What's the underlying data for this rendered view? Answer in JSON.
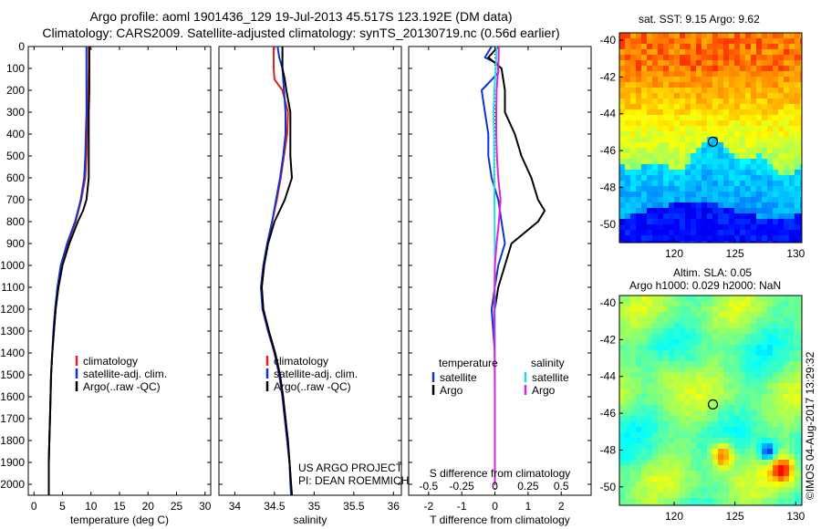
{
  "title": {
    "line1": "Argo profile: aoml 1901436_129 19-Jul-2013 45.517S 123.192E (DM data)",
    "line2": "Climatology: CARS2009. Satellite-adjusted climatology: synTS_20130719.nc (0.56d earlier)"
  },
  "colors": {
    "climatology": "#dd2222",
    "satellite": "#1133cc",
    "argo": "#000000",
    "salinity_satellite": "#22dddd",
    "salinity_argo": "#dd22dd"
  },
  "depth_ticks": [
    0,
    100,
    200,
    300,
    400,
    500,
    600,
    700,
    800,
    900,
    1000,
    1100,
    1200,
    1300,
    1400,
    1500,
    1600,
    1700,
    1800,
    1900,
    2000
  ],
  "legend": {
    "climatology": "climatology",
    "satellite": "satellite-adj. clim.",
    "argo": "Argo(..raw -QC)"
  },
  "diff_legend": {
    "temp_header": "temperature",
    "sal_header": "salinity",
    "satellite": "satellite",
    "argo": "Argo"
  },
  "credit": {
    "line1": "US ARGO PROJECT",
    "line2": "PI: DEAN ROEMMICH"
  },
  "maps": {
    "sst_title": "sat. SST: 9.15 Argo: 9.62",
    "sla_title1": "Altim. SLA: 0.05",
    "sla_title2": "Argo h1000: 0.029 h2000: NaN",
    "side_text": "©IMOS 04-Aug-2017 13:29:32",
    "lat_ticks": [
      "-40",
      "-42",
      "-44",
      "-46",
      "-48",
      "-50"
    ],
    "lon_ticks": [
      "120",
      "125",
      "130"
    ]
  },
  "chart_data": [
    {
      "type": "line",
      "xlabel": "temperature (deg C)",
      "ylim": [
        2050,
        0
      ],
      "xlim": [
        -1,
        31
      ],
      "xticks": [
        0,
        5,
        10,
        15,
        20,
        25,
        30
      ],
      "series": [
        {
          "name": "climatology",
          "depth": [
            0,
            100,
            200,
            300,
            400,
            500,
            600,
            700,
            800,
            900,
            1000,
            1100,
            1200,
            1300,
            1400,
            1500,
            1600,
            1700,
            1800,
            1900,
            2000,
            2050
          ],
          "values": [
            9.6,
            9.6,
            9.5,
            9.4,
            9.3,
            9.2,
            9.0,
            8.3,
            7.3,
            5.9,
            4.8,
            4.2,
            3.8,
            3.5,
            3.2,
            3.0,
            2.9,
            2.8,
            2.7,
            2.6,
            2.6,
            2.6
          ]
        },
        {
          "name": "satellite-adj. clim.",
          "depth": [
            0,
            100,
            200,
            300,
            400,
            500,
            600,
            700,
            800,
            900,
            1000,
            1100,
            1200,
            1300,
            1400,
            1500,
            1600,
            1700,
            1800,
            1900,
            2000,
            2050
          ],
          "values": [
            9.2,
            9.2,
            9.2,
            9.2,
            9.1,
            9.0,
            8.8,
            8.2,
            7.2,
            5.8,
            4.7,
            4.1,
            3.7,
            3.4,
            3.2,
            3.0,
            2.9,
            2.8,
            2.7,
            2.6,
            2.6,
            2.6
          ]
        },
        {
          "name": "Argo(..raw -QC)",
          "depth": [
            0,
            100,
            200,
            300,
            400,
            500,
            600,
            700,
            750,
            800,
            900,
            1000,
            1100,
            1200,
            1300,
            1400,
            1500,
            1600,
            1700,
            1800,
            1900,
            2000,
            2050
          ],
          "values": [
            9.7,
            9.7,
            9.7,
            9.6,
            9.6,
            9.6,
            9.6,
            9.2,
            8.6,
            7.7,
            6.2,
            5.0,
            4.3,
            3.8,
            3.5,
            3.2,
            3.0,
            2.9,
            2.8,
            2.7,
            2.6,
            2.6,
            2.6
          ]
        }
      ]
    },
    {
      "type": "line",
      "xlabel": "salinity",
      "ylim": [
        2050,
        0
      ],
      "xlim": [
        33.8,
        36.1
      ],
      "xticks": [
        34,
        34.5,
        35,
        35.5,
        36
      ],
      "series": [
        {
          "name": "climatology",
          "depth": [
            0,
            100,
            150,
            200,
            300,
            400,
            500,
            600,
            700,
            800,
            900,
            1000,
            1100,
            1200,
            1300,
            1400,
            1500,
            1600,
            1700,
            1800,
            1900,
            2000,
            2050
          ],
          "values": [
            34.49,
            34.49,
            34.5,
            34.6,
            34.67,
            34.66,
            34.62,
            34.58,
            34.53,
            34.47,
            34.41,
            34.36,
            34.33,
            34.35,
            34.42,
            34.5,
            34.56,
            34.6,
            34.63,
            34.66,
            34.69,
            34.71,
            34.72
          ]
        },
        {
          "name": "satellite-adj. clim.",
          "depth": [
            0,
            50,
            100,
            200,
            300,
            400,
            500,
            600,
            700,
            800,
            900,
            1000,
            1100,
            1200,
            1300,
            1400,
            1500,
            1600,
            1700,
            1800,
            1900,
            2000,
            2050
          ],
          "values": [
            34.54,
            34.56,
            34.6,
            34.62,
            34.64,
            34.64,
            34.61,
            34.57,
            34.52,
            34.47,
            34.41,
            34.36,
            34.33,
            34.35,
            34.42,
            34.5,
            34.56,
            34.6,
            34.63,
            34.66,
            34.69,
            34.7,
            34.71
          ]
        },
        {
          "name": "Argo(..raw -QC)",
          "depth": [
            0,
            100,
            150,
            200,
            300,
            400,
            500,
            600,
            700,
            800,
            900,
            1000,
            1100,
            1200,
            1300,
            1400,
            1500,
            1600,
            1700,
            1800,
            1900,
            2000,
            2050
          ],
          "values": [
            34.6,
            34.6,
            34.63,
            34.65,
            34.7,
            34.7,
            34.7,
            34.72,
            34.63,
            34.5,
            34.42,
            34.37,
            34.34,
            34.36,
            34.43,
            34.51,
            34.57,
            34.61,
            34.64,
            34.67,
            34.69,
            34.71,
            34.72
          ]
        }
      ]
    },
    {
      "type": "line",
      "xlabel": "T difference from climatology",
      "xlabel_top": "S difference from climatology",
      "ylim": [
        2050,
        0
      ],
      "xlim": [
        -2.6,
        2.9
      ],
      "xticks": [
        -2,
        -1,
        0,
        1,
        2
      ],
      "sticks": [
        "-0.5",
        "-0.25",
        "0",
        "0.25",
        "0.5"
      ],
      "series": [
        {
          "name": "temperature satellite",
          "depth": [
            0,
            50,
            80,
            120,
            200,
            300,
            400,
            500,
            600,
            700,
            800,
            900,
            1000,
            1100,
            1200,
            1300,
            1400,
            1600,
            1800,
            2000
          ],
          "values": [
            -0.1,
            -0.3,
            0.1,
            0.1,
            -0.4,
            -0.3,
            -0.2,
            -0.2,
            -0.1,
            0.1,
            0.2,
            0.3,
            0.1,
            0.0,
            -0.1,
            -0.05,
            0.0,
            0.0,
            0.0,
            0.0
          ]
        },
        {
          "name": "temperature Argo",
          "depth": [
            0,
            50,
            100,
            200,
            300,
            400,
            500,
            600,
            700,
            750,
            800,
            900,
            1000,
            1100,
            1200,
            1400,
            1600,
            1800,
            2000
          ],
          "values": [
            0.1,
            -0.2,
            0.2,
            0.3,
            0.3,
            0.6,
            0.8,
            1.1,
            1.3,
            1.5,
            1.3,
            0.5,
            0.3,
            0.1,
            0.0,
            0.0,
            0.0,
            0.0,
            0.0
          ]
        },
        {
          "name": "salinity satellite",
          "depth": [
            0,
            100,
            200,
            300,
            400,
            600,
            800,
            1000,
            1200,
            1400,
            1600,
            1800,
            2000
          ],
          "values": [
            0.05,
            0.03,
            -0.02,
            -0.04,
            -0.03,
            -0.02,
            -0.01,
            0.0,
            0.0,
            0.0,
            0.0,
            0.0,
            0.0
          ]
        },
        {
          "name": "salinity Argo",
          "depth": [
            0,
            100,
            200,
            300,
            400,
            500,
            600,
            700,
            800,
            900,
            1000,
            1200,
            1400,
            1600,
            1800,
            2000
          ],
          "values": [
            0.12,
            0.1,
            0.05,
            0.04,
            0.04,
            0.06,
            0.1,
            0.17,
            0.12,
            0.05,
            0.0,
            -0.02,
            -0.01,
            0.0,
            0.0,
            0.0
          ]
        }
      ]
    }
  ]
}
